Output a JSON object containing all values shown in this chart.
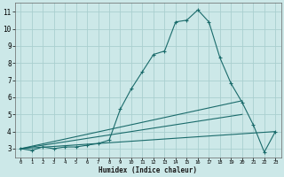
{
  "xlabel": "Humidex (Indice chaleur)",
  "ylabel": "",
  "bg_color": "#cce8e8",
  "grid_color": "#aacfcf",
  "line_color": "#1a6b6b",
  "xlim": [
    -0.5,
    23.5
  ],
  "ylim": [
    2.5,
    11.5
  ],
  "xticks": [
    0,
    1,
    2,
    3,
    4,
    5,
    6,
    7,
    8,
    9,
    10,
    11,
    12,
    13,
    14,
    15,
    16,
    17,
    18,
    19,
    20,
    21,
    22,
    23
  ],
  "yticks": [
    3,
    4,
    5,
    6,
    7,
    8,
    9,
    10,
    11
  ],
  "curve1": {
    "x": [
      0,
      1,
      2,
      3,
      4,
      5,
      6,
      7,
      8,
      9,
      10,
      11,
      12,
      13,
      14,
      15,
      16,
      17,
      18,
      19,
      20,
      21,
      22,
      23
    ],
    "y": [
      3.0,
      2.9,
      3.1,
      3.0,
      3.1,
      3.1,
      3.2,
      3.3,
      3.5,
      5.3,
      6.5,
      7.5,
      8.5,
      8.7,
      10.4,
      10.5,
      11.1,
      10.4,
      8.3,
      6.8,
      5.7,
      4.4,
      2.8,
      4.0
    ]
  },
  "line2": {
    "x": [
      0,
      20
    ],
    "y": [
      3.0,
      5.8
    ]
  },
  "line3": {
    "x": [
      0,
      20
    ],
    "y": [
      3.0,
      5.0
    ]
  },
  "line4": {
    "x": [
      0,
      23
    ],
    "y": [
      3.0,
      4.0
    ]
  }
}
